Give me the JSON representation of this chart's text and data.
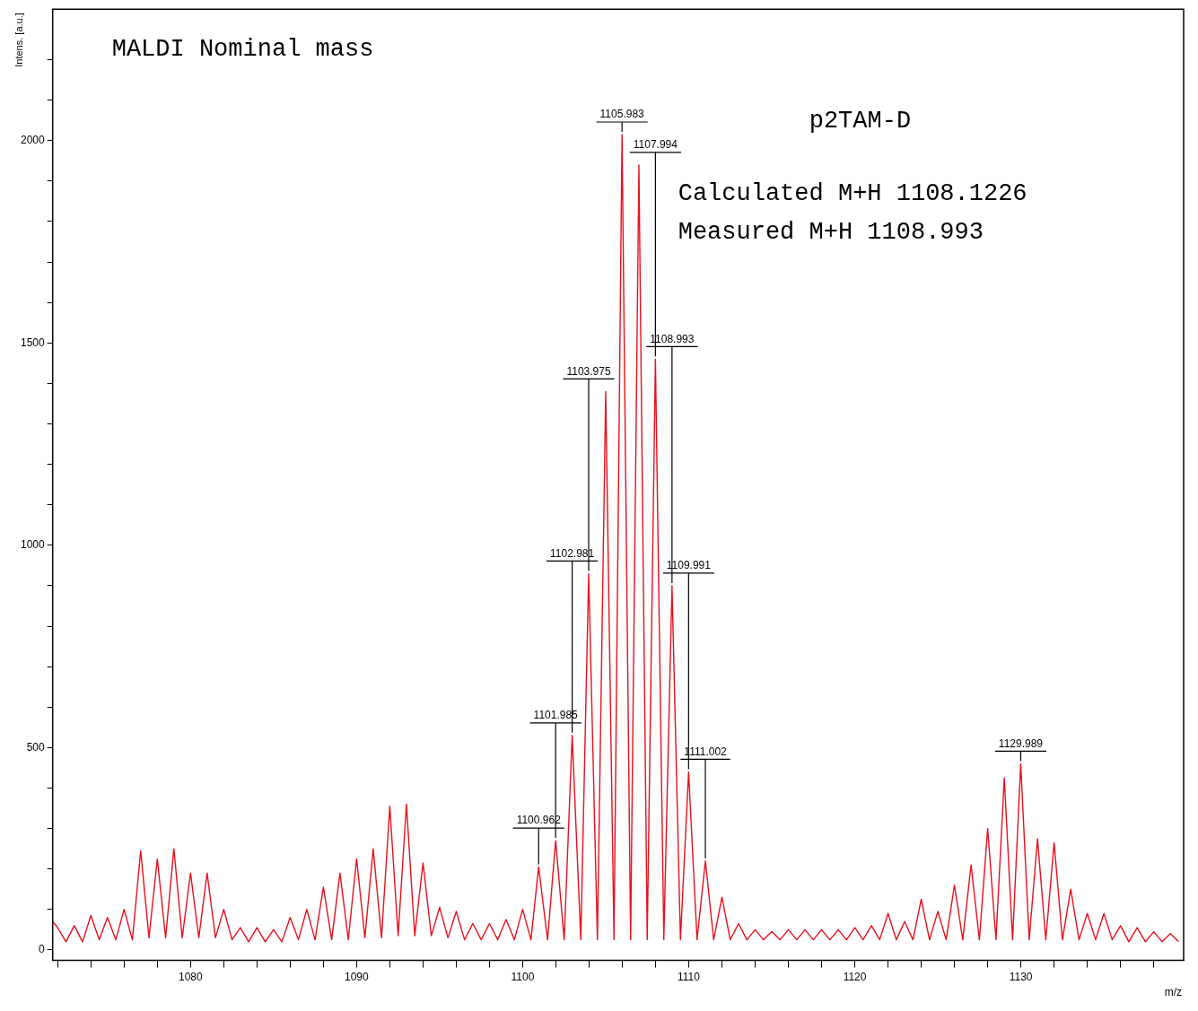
{
  "chart_data": {
    "type": "line",
    "title": "MALDI Nominal mass",
    "xlabel": "m/z",
    "ylabel": "Intens. [a.u.]",
    "annotations": [
      "p2TAM-D",
      "Calculated M+H 1108.1226",
      "Measured M+H 1108.993",
      {
        "text": "1100.962",
        "x": 1100.962,
        "y": 205
      },
      {
        "text": "1101.985",
        "x": 1101.985,
        "y": 270
      },
      {
        "text": "1102.981",
        "x": 1102.981,
        "y": 530
      },
      {
        "text": "1103.975",
        "x": 1103.975,
        "y": 930
      },
      {
        "text": "1105.983",
        "x": 1105.983,
        "y": 2015
      },
      {
        "text": "1107.994",
        "x": 1107.994,
        "y": 1460
      },
      {
        "text": "1108.993",
        "x": 1108.993,
        "y": 900
      },
      {
        "text": "1109.991",
        "x": 1109.991,
        "y": 440
      },
      {
        "text": "1111.002",
        "x": 1111.002,
        "y": 220
      },
      {
        "text": "1129.989",
        "x": 1129.989,
        "y": 460
      }
    ],
    "x": [
      1071.7,
      1072,
      1072.5,
      1073,
      1073.5,
      1074,
      1074.5,
      1075,
      1075.5,
      1076,
      1076.5,
      1077,
      1077.5,
      1078,
      1078.5,
      1079,
      1079.5,
      1080,
      1080.5,
      1081,
      1081.5,
      1082,
      1082.5,
      1083,
      1083.5,
      1084,
      1084.5,
      1085,
      1085.5,
      1086,
      1086.5,
      1087,
      1087.5,
      1088,
      1088.5,
      1089,
      1089.5,
      1090,
      1090.5,
      1091,
      1091.5,
      1092,
      1092.5,
      1093,
      1093.5,
      1094,
      1094.5,
      1095,
      1095.5,
      1096,
      1096.5,
      1097,
      1097.5,
      1098,
      1098.5,
      1099,
      1099.5,
      1100,
      1100.5,
      1100.962,
      1101.5,
      1101.985,
      1102.5,
      1102.981,
      1103.5,
      1103.975,
      1104.5,
      1105,
      1105.5,
      1105.983,
      1106.5,
      1107,
      1107.5,
      1107.994,
      1108.5,
      1108.993,
      1109.5,
      1109.991,
      1110.5,
      1111.002,
      1111.5,
      1112,
      1112.5,
      1113,
      1113.5,
      1114,
      1114.5,
      1115,
      1115.5,
      1116,
      1116.5,
      1117,
      1117.5,
      1118,
      1118.5,
      1119,
      1119.5,
      1120,
      1120.5,
      1121,
      1121.5,
      1122,
      1122.5,
      1123,
      1123.5,
      1124,
      1124.5,
      1125,
      1125.5,
      1126,
      1126.5,
      1127,
      1127.5,
      1128,
      1128.5,
      1129,
      1129.5,
      1129.989,
      1130.5,
      1131,
      1131.5,
      1132,
      1132.5,
      1133,
      1133.5,
      1134,
      1134.5,
      1135,
      1135.5,
      1136,
      1136.5,
      1137,
      1137.5,
      1138,
      1138.5,
      1139,
      1139.5
    ],
    "series": [
      {
        "color": "#e8101c",
        "values": [
          70,
          55,
          20,
          60,
          20,
          85,
          25,
          80,
          25,
          100,
          25,
          245,
          30,
          225,
          30,
          250,
          30,
          190,
          30,
          190,
          30,
          100,
          25,
          55,
          20,
          55,
          20,
          50,
          20,
          80,
          25,
          100,
          25,
          155,
          25,
          190,
          25,
          225,
          30,
          250,
          30,
          355,
          35,
          360,
          35,
          215,
          35,
          105,
          30,
          95,
          25,
          65,
          25,
          65,
          25,
          75,
          25,
          100,
          25,
          205,
          25,
          270,
          25,
          530,
          25,
          930,
          25,
          1380,
          25,
          2015,
          25,
          1940,
          25,
          1460,
          25,
          900,
          25,
          440,
          25,
          220,
          25,
          130,
          25,
          65,
          25,
          50,
          25,
          45,
          25,
          50,
          25,
          50,
          25,
          50,
          25,
          50,
          25,
          55,
          25,
          60,
          25,
          90,
          25,
          70,
          25,
          125,
          25,
          95,
          25,
          160,
          25,
          210,
          25,
          300,
          25,
          425,
          25,
          460,
          25,
          275,
          25,
          265,
          25,
          150,
          25,
          90,
          25,
          90,
          25,
          60,
          20,
          55,
          20,
          45,
          20,
          40,
          20
        ]
      }
    ],
    "xlim": [
      1071.7,
      1139.8
    ],
    "xticks": [
      {
        "value": 1072,
        "label": null
      },
      {
        "value": 1074,
        "label": null
      },
      {
        "value": 1076,
        "label": null
      },
      {
        "value": 1078,
        "label": null
      },
      1080,
      {
        "value": 1082,
        "label": null
      },
      {
        "value": 1084,
        "label": null
      },
      {
        "value": 1086,
        "label": null
      },
      {
        "value": 1088,
        "label": null
      },
      1090,
      {
        "value": 1092,
        "label": null
      },
      {
        "value": 1094,
        "label": null
      },
      {
        "value": 1096,
        "label": null
      },
      {
        "value": 1098,
        "label": null
      },
      1100,
      {
        "value": 1102,
        "label": null
      },
      {
        "value": 1104,
        "label": null
      },
      {
        "value": 1106,
        "label": null
      },
      {
        "value": 1108,
        "label": null
      },
      1110,
      {
        "value": 1112,
        "label": null
      },
      {
        "value": 1114,
        "label": null
      },
      {
        "value": 1116,
        "label": null
      },
      {
        "value": 1118,
        "label": null
      },
      1120,
      {
        "value": 1122,
        "label": null
      },
      {
        "value": 1124,
        "label": null
      },
      {
        "value": 1126,
        "label": null
      },
      {
        "value": 1128,
        "label": null
      },
      1130,
      {
        "value": 1132,
        "label": null
      },
      {
        "value": 1134,
        "label": null
      },
      {
        "value": 1136,
        "label": null
      },
      {
        "value": 1138,
        "label": null
      }
    ],
    "ylim": [
      -26,
      2325
    ],
    "yticks": [
      0,
      {
        "value": 100,
        "label": null
      },
      {
        "value": 200,
        "label": null
      },
      {
        "value": 300,
        "label": null
      },
      {
        "value": 400,
        "label": null
      },
      500,
      {
        "value": 600,
        "label": null
      },
      {
        "value": 700,
        "label": null
      },
      {
        "value": 800,
        "label": null
      },
      {
        "value": 900,
        "label": null
      },
      1000,
      {
        "value": 1100,
        "label": null
      },
      {
        "value": 1200,
        "label": null
      },
      {
        "value": 1300,
        "label": null
      },
      {
        "value": 1400,
        "label": null
      },
      1500,
      {
        "value": 1600,
        "label": null
      },
      {
        "value": 1700,
        "label": null
      },
      {
        "value": 1800,
        "label": null
      },
      {
        "value": 1900,
        "label": null
      },
      2000,
      {
        "value": 2100,
        "label": null
      },
      {
        "value": 2200,
        "label": null
      }
    ],
    "marker": "none",
    "line_style": "solid",
    "legend": false
  }
}
